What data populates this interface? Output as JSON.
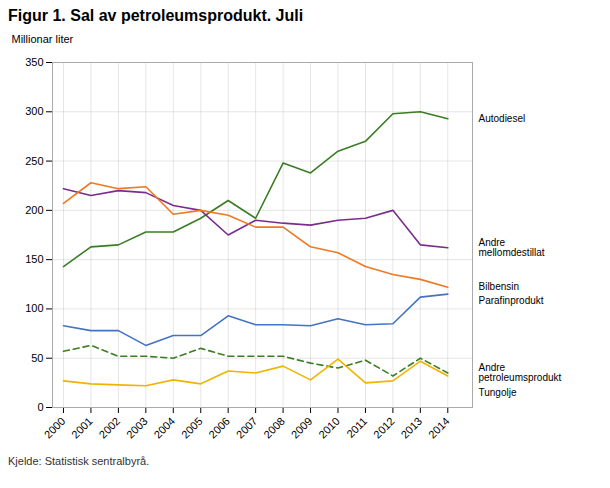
{
  "chart_data": {
    "type": "line",
    "title": "Figur 1. Sal av petroleumsprodukt. Juli",
    "ylabel": "Millionar liter",
    "caption": "Kjelde: Statistisk sentralbyrå.",
    "x": [
      2000,
      2001,
      2002,
      2003,
      2004,
      2005,
      2006,
      2007,
      2008,
      2009,
      2010,
      2011,
      2012,
      2013,
      2014
    ],
    "series": [
      {
        "name": "Autodiesel",
        "color": "#3a7d23",
        "line_style": "solid",
        "values": [
          143,
          163,
          165,
          178,
          178,
          192,
          210,
          192,
          248,
          238,
          260,
          270,
          298,
          300,
          293
        ]
      },
      {
        "name": "Andre mellomdestillat",
        "color": "#7b2d8b",
        "line_style": "solid",
        "values": [
          222,
          215,
          220,
          218,
          205,
          200,
          175,
          190,
          187,
          185,
          190,
          192,
          200,
          165,
          162
        ]
      },
      {
        "name": "Bilbensin",
        "color": "#f07820",
        "line_style": "solid",
        "values": [
          207,
          228,
          222,
          224,
          196,
          200,
          195,
          183,
          183,
          163,
          157,
          143,
          135,
          130,
          122
        ]
      },
      {
        "name": "Parafinprodukt",
        "color": "#4472c4",
        "line_style": "solid",
        "values": [
          83,
          78,
          78,
          63,
          73,
          73,
          93,
          84,
          84,
          83,
          90,
          84,
          85,
          112,
          115
        ]
      },
      {
        "name": "Andre petroleumsprodukt",
        "color": "#3a7d23",
        "line_style": "dashed",
        "values": [
          57,
          63,
          52,
          52,
          50,
          60,
          52,
          52,
          52,
          45,
          40,
          48,
          32,
          50,
          35
        ]
      },
      {
        "name": "Tungolje",
        "color": "#f0b400",
        "line_style": "solid",
        "values": [
          27,
          24,
          23,
          22,
          28,
          24,
          37,
          35,
          42,
          28,
          49,
          25,
          27,
          47,
          32
        ]
      }
    ],
    "annotations": [
      "Autodiesel",
      "Andre\nmellomdestillat",
      "Bilbensin",
      "Parafinprodukt",
      "Andre\npetroleumsprodukt",
      "Tungolje"
    ],
    "xlim": [
      1999.6,
      2014.9
    ],
    "xticks": [
      2000,
      2001,
      2002,
      2003,
      2004,
      2005,
      2006,
      2007,
      2008,
      2009,
      2010,
      2011,
      2012,
      2013,
      2014
    ],
    "ylim": [
      0,
      350
    ],
    "yticks": [
      0,
      50,
      100,
      150,
      200,
      250,
      300,
      350
    ],
    "grid": true
  }
}
